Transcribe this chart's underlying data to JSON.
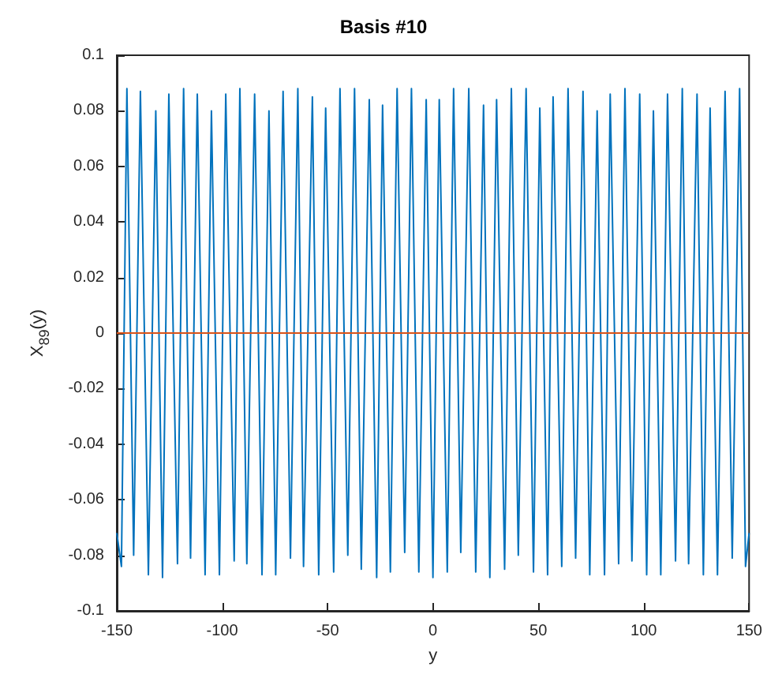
{
  "chart_data": {
    "type": "line",
    "title": "Basis #10",
    "xlabel": "y",
    "ylabel": "X$_{89}$(y)",
    "xlim": [
      -150,
      150
    ],
    "xticks": [
      -150,
      -100,
      -50,
      0,
      50,
      100,
      150
    ],
    "ylim": [
      -0.1,
      0.1
    ],
    "yticks": [
      -0.1,
      -0.08,
      -0.06,
      -0.04,
      -0.02,
      0,
      0.02,
      0.04,
      0.06,
      0.08,
      0.1
    ],
    "grid": false,
    "series": [
      {
        "color": "#0072bd",
        "x": [
          -150,
          -147.8,
          -145.2,
          -142.0,
          -138.8,
          -135.0,
          -131.5,
          -128.3,
          -125.3,
          -121.2,
          -118.3,
          -115.0,
          -111.8,
          -108.1,
          -105.1,
          -101.3,
          -98.3,
          -94.3,
          -91.6,
          -88.3,
          -84.6,
          -81.1,
          -77.8,
          -74.6,
          -71.1,
          -67.6,
          -64.1,
          -61.4,
          -57.2,
          -54.2,
          -50.9,
          -47.1,
          -44.1,
          -40.4,
          -37.2,
          -34.0,
          -30.2,
          -26.7,
          -23.9,
          -20.2,
          -17.0,
          -13.4,
          -10.2,
          -6.7,
          -3.2,
          0.0,
          3.0,
          6.8,
          9.8,
          13.2,
          17.0,
          20.3,
          24.0,
          27.0,
          30.2,
          34.0,
          37.2,
          40.5,
          44.2,
          47.7,
          50.7,
          54.4,
          57.0,
          61.1,
          64.1,
          67.7,
          71.2,
          74.4,
          77.9,
          81.4,
          84.1,
          88.1,
          91.1,
          94.4,
          98.1,
          101.4,
          104.6,
          108.1,
          111.3,
          115.1,
          118.3,
          121.3,
          125.3,
          128.3,
          131.5,
          135.0,
          138.6,
          142.0,
          145.5,
          148.3,
          150
        ],
        "values": [
          -0.072,
          -0.084,
          0.088,
          -0.08,
          0.087,
          -0.087,
          0.08,
          -0.088,
          0.086,
          -0.083,
          0.088,
          -0.081,
          0.086,
          -0.087,
          0.08,
          -0.087,
          0.086,
          -0.082,
          0.088,
          -0.083,
          0.086,
          -0.087,
          0.08,
          -0.087,
          0.087,
          -0.081,
          0.088,
          -0.084,
          0.085,
          -0.087,
          0.081,
          -0.086,
          0.088,
          -0.08,
          0.088,
          -0.085,
          0.084,
          -0.088,
          0.082,
          -0.086,
          0.088,
          -0.079,
          0.088,
          -0.086,
          0.084,
          -0.088,
          0.084,
          -0.086,
          0.088,
          -0.079,
          0.088,
          -0.086,
          0.082,
          -0.088,
          0.084,
          -0.085,
          0.088,
          -0.08,
          0.088,
          -0.086,
          0.081,
          -0.087,
          0.085,
          -0.084,
          0.088,
          -0.081,
          0.087,
          -0.087,
          0.08,
          -0.087,
          0.086,
          -0.083,
          0.088,
          -0.082,
          0.086,
          -0.087,
          0.08,
          -0.087,
          0.086,
          -0.082,
          0.088,
          -0.083,
          0.086,
          -0.087,
          0.081,
          -0.087,
          0.087,
          -0.081,
          0.088,
          -0.084,
          -0.072
        ]
      },
      {
        "color": "#d95319",
        "x": [
          -150,
          150
        ],
        "values": [
          0,
          0
        ]
      }
    ]
  }
}
